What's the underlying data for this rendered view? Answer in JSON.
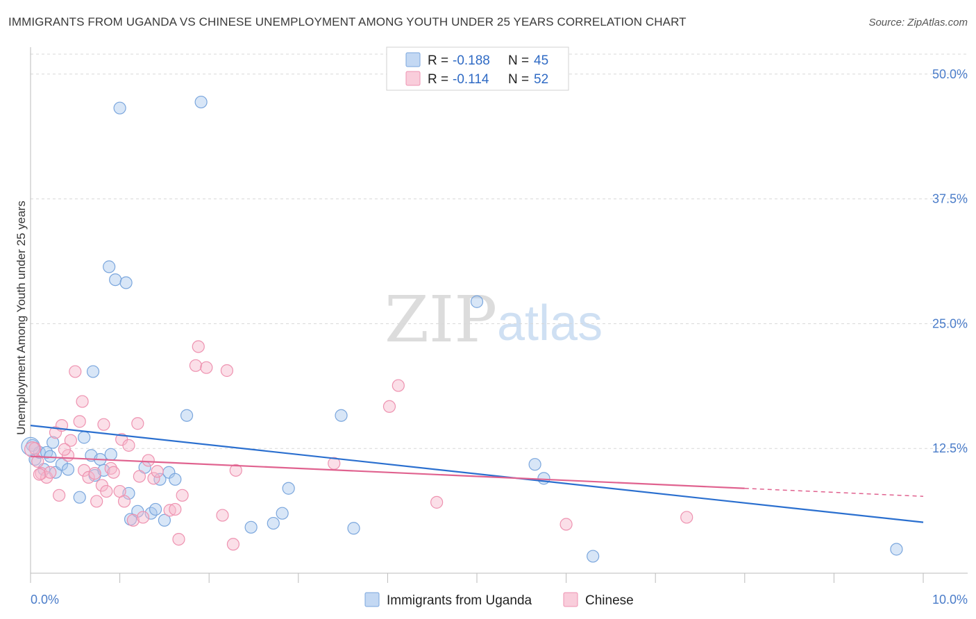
{
  "title": "IMMIGRANTS FROM UGANDA VS CHINESE UNEMPLOYMENT AMONG YOUTH UNDER 25 YEARS CORRELATION CHART",
  "source": "Source: ZipAtlas.com",
  "watermark": {
    "part1": "ZIP",
    "part2": "atlas"
  },
  "colors": {
    "uganda_fill": "#a9c8ee",
    "uganda_stroke": "#7aa6dd",
    "uganda_line": "#2a6fcf",
    "chinese_fill": "#f6b8cc",
    "chinese_stroke": "#ee92b0",
    "chinese_line": "#e0628f",
    "tick_text": "#4a7cc9",
    "grid": "#d8d8d8"
  },
  "legend": {
    "rows": [
      {
        "r_label": "R =",
        "r_value": "-0.188",
        "n_label": "N =",
        "n_value": "45"
      },
      {
        "r_label": "R =",
        "r_value": "-0.114",
        "n_label": "N =",
        "n_value": "52"
      }
    ]
  },
  "chart_data": {
    "type": "scatter",
    "title": "IMMIGRANTS FROM UGANDA VS CHINESE UNEMPLOYMENT AMONG YOUTH UNDER 25 YEARS CORRELATION CHART",
    "xlabel": "",
    "ylabel": "Unemployment Among Youth under 25 years",
    "xlim": [
      0,
      10
    ],
    "ylim": [
      0,
      52
    ],
    "x_tick_labels": [
      "0.0%",
      "10.0%"
    ],
    "y_ticks": [
      12.5,
      25,
      37.5,
      50
    ],
    "y_tick_labels": [
      "12.5%",
      "25.0%",
      "37.5%",
      "50.0%"
    ],
    "grid": "horizontal dashed",
    "legend_position": "top-center",
    "series": [
      {
        "name": "Immigrants from Uganda",
        "points": [
          [
            0.02,
            12.8
          ],
          [
            0.05,
            11.4
          ],
          [
            0.1,
            12.1
          ],
          [
            0.15,
            10.4
          ],
          [
            0.18,
            12.1
          ],
          [
            0.25,
            13.1
          ],
          [
            0.28,
            10.1
          ],
          [
            0.35,
            10.9
          ],
          [
            0.42,
            10.4
          ],
          [
            0.55,
            7.6
          ],
          [
            0.6,
            13.6
          ],
          [
            0.68,
            11.8
          ],
          [
            0.7,
            20.2
          ],
          [
            0.72,
            9.8
          ],
          [
            0.78,
            11.4
          ],
          [
            0.82,
            10.3
          ],
          [
            0.88,
            30.7
          ],
          [
            0.9,
            11.9
          ],
          [
            0.95,
            29.4
          ],
          [
            1.0,
            46.6
          ],
          [
            1.07,
            29.1
          ],
          [
            1.1,
            8.0
          ],
          [
            1.12,
            5.4
          ],
          [
            1.2,
            6.2
          ],
          [
            1.28,
            10.6
          ],
          [
            1.35,
            6.0
          ],
          [
            1.4,
            6.4
          ],
          [
            1.45,
            9.4
          ],
          [
            1.5,
            5.3
          ],
          [
            1.55,
            10.1
          ],
          [
            1.62,
            9.4
          ],
          [
            1.75,
            15.8
          ],
          [
            1.91,
            47.2
          ],
          [
            2.47,
            4.6
          ],
          [
            2.72,
            5.0
          ],
          [
            2.82,
            6.0
          ],
          [
            2.89,
            8.5
          ],
          [
            3.48,
            15.8
          ],
          [
            3.62,
            4.5
          ],
          [
            5.0,
            27.2
          ],
          [
            5.65,
            10.9
          ],
          [
            5.75,
            9.5
          ],
          [
            6.3,
            1.7
          ],
          [
            9.7,
            2.4
          ],
          [
            0.22,
            11.7
          ]
        ]
      },
      {
        "name": "Chinese",
        "points": [
          [
            0.05,
            12.5
          ],
          [
            0.08,
            11.2
          ],
          [
            0.12,
            10.0
          ],
          [
            0.18,
            9.6
          ],
          [
            0.22,
            10.1
          ],
          [
            0.28,
            14.1
          ],
          [
            0.32,
            7.8
          ],
          [
            0.35,
            14.8
          ],
          [
            0.42,
            11.8
          ],
          [
            0.45,
            13.3
          ],
          [
            0.5,
            20.2
          ],
          [
            0.55,
            15.2
          ],
          [
            0.58,
            17.2
          ],
          [
            0.6,
            10.3
          ],
          [
            0.65,
            9.6
          ],
          [
            0.72,
            10.0
          ],
          [
            0.74,
            7.2
          ],
          [
            0.8,
            8.8
          ],
          [
            0.82,
            14.9
          ],
          [
            0.85,
            8.2
          ],
          [
            0.9,
            10.5
          ],
          [
            0.93,
            10.1
          ],
          [
            1.0,
            8.2
          ],
          [
            1.02,
            13.4
          ],
          [
            1.05,
            7.2
          ],
          [
            1.1,
            12.8
          ],
          [
            1.15,
            5.3
          ],
          [
            1.2,
            15.0
          ],
          [
            1.22,
            9.7
          ],
          [
            1.26,
            5.6
          ],
          [
            1.32,
            11.3
          ],
          [
            1.38,
            9.5
          ],
          [
            1.42,
            10.2
          ],
          [
            1.56,
            6.3
          ],
          [
            1.62,
            6.4
          ],
          [
            1.66,
            3.4
          ],
          [
            1.7,
            7.8
          ],
          [
            1.85,
            20.8
          ],
          [
            1.88,
            22.7
          ],
          [
            1.97,
            20.6
          ],
          [
            2.15,
            5.8
          ],
          [
            2.2,
            20.3
          ],
          [
            2.27,
            2.9
          ],
          [
            2.3,
            10.3
          ],
          [
            3.4,
            11.0
          ],
          [
            4.02,
            16.7
          ],
          [
            4.12,
            18.8
          ],
          [
            4.55,
            7.1
          ],
          [
            6.0,
            4.9
          ],
          [
            7.35,
            5.6
          ],
          [
            0.1,
            9.9
          ],
          [
            0.38,
            12.4
          ]
        ]
      }
    ],
    "trendlines": [
      {
        "name": "Immigrants from Uganda",
        "x0": 0.0,
        "y0": 14.8,
        "x1": 10.0,
        "y1": 5.1,
        "dashed_after": null
      },
      {
        "name": "Chinese",
        "x0": 0.0,
        "y0": 11.7,
        "x1": 8.0,
        "y1": 8.5,
        "dashed_to": 10.0,
        "dashed_y": 7.7
      }
    ]
  }
}
